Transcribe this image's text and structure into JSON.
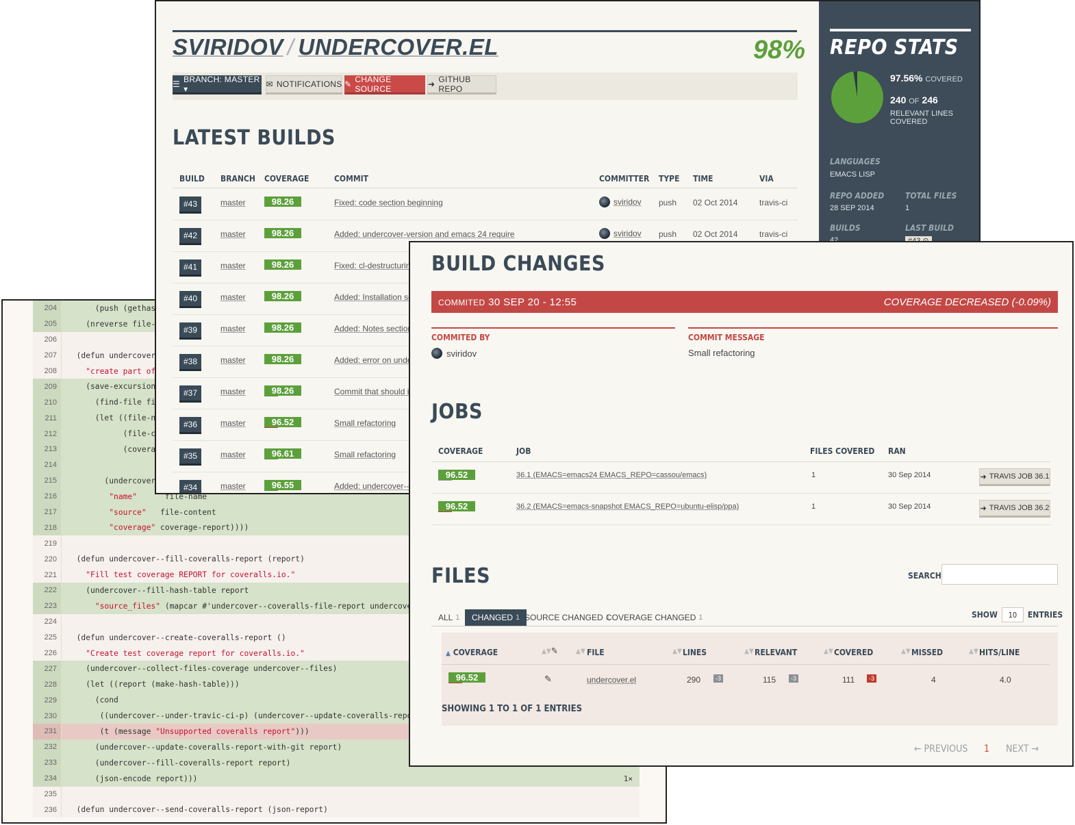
{
  "code": {
    "lines": [
      {
        "n": "204",
        "cls": "covered",
        "t": "      (push (gethash ",
        "s": "",
        "e": ""
      },
      {
        "n": "205",
        "cls": "covered",
        "t": "    (nreverse file-c",
        "s": "",
        "e": ""
      },
      {
        "n": "206",
        "cls": "none",
        "t": "",
        "s": "",
        "e": ""
      },
      {
        "n": "207",
        "cls": "none",
        "t": "  (defun undercover--c",
        "s": "",
        "e": ""
      },
      {
        "n": "208",
        "cls": "none",
        "t": "    ",
        "s": "\"create part of co",
        "e": ""
      },
      {
        "n": "209",
        "cls": "covered",
        "t": "    (save-excursion",
        "s": "",
        "e": ""
      },
      {
        "n": "210",
        "cls": "covered",
        "t": "      (find-file file)",
        "s": "",
        "e": ""
      },
      {
        "n": "211",
        "cls": "covered",
        "t": "      (let ((file-name",
        "s": "",
        "e": ""
      },
      {
        "n": "212",
        "cls": "covered",
        "t": "            (file-cont",
        "s": "",
        "e": ""
      },
      {
        "n": "213",
        "cls": "covered",
        "t": "            (coverage-r",
        "s": "",
        "e": ""
      },
      {
        "n": "214",
        "cls": "covered",
        "t": "",
        "s": "",
        "e": ""
      },
      {
        "n": "215",
        "cls": "covered",
        "t": "        (undercover--m",
        "s": "",
        "e": ""
      },
      {
        "n": "216",
        "cls": "covered",
        "t": "         ",
        "s": "\"name\"",
        "e": "      file-name"
      },
      {
        "n": "217",
        "cls": "covered",
        "t": "         ",
        "s": "\"source\"",
        "e": "   file-content"
      },
      {
        "n": "218",
        "cls": "covered",
        "t": "         ",
        "s": "\"coverage\"",
        "e": " coverage-report))))"
      },
      {
        "n": "219",
        "cls": "none",
        "t": "",
        "s": "",
        "e": ""
      },
      {
        "n": "220",
        "cls": "none",
        "t": "  (defun undercover--fill-coveralls-report (report)",
        "s": "",
        "e": ""
      },
      {
        "n": "221",
        "cls": "none",
        "t": "    ",
        "s": "\"Fill test coverage REPORT for coveralls.io.\"",
        "e": ""
      },
      {
        "n": "222",
        "cls": "covered",
        "t": "    (undercover--fill-hash-table report",
        "s": "",
        "e": ""
      },
      {
        "n": "223",
        "cls": "covered",
        "t": "      ",
        "s": "\"source_files\"",
        "e": " (mapcar #'undercover--coveralls-file-report undercover--files)))"
      },
      {
        "n": "224",
        "cls": "none",
        "t": "",
        "s": "",
        "e": ""
      },
      {
        "n": "225",
        "cls": "none",
        "t": "  (defun undercover--create-coveralls-report ()",
        "s": "",
        "e": ""
      },
      {
        "n": "226",
        "cls": "none",
        "t": "    ",
        "s": "\"Create test coverage report for coveralls.io.\"",
        "e": ""
      },
      {
        "n": "227",
        "cls": "covered",
        "t": "    (undercover--collect-files-coverage undercover--files)",
        "s": "",
        "e": ""
      },
      {
        "n": "228",
        "cls": "covered",
        "t": "    (let ((report (make-hash-table)))",
        "s": "",
        "e": ""
      },
      {
        "n": "229",
        "cls": "covered",
        "t": "      (cond",
        "s": "",
        "e": ""
      },
      {
        "n": "230",
        "cls": "covered",
        "t": "       ((undercover--under-travic-ci-p) (undercover--update-coveralls-report-with-tra",
        "s": "",
        "e": ""
      },
      {
        "n": "231",
        "cls": "missed",
        "t": "       (t (message ",
        "s": "\"Unsupported coveralls report\"",
        "e": ")))"
      },
      {
        "n": "232",
        "cls": "covered",
        "t": "      (undercover--update-coveralls-report-with-git report)",
        "s": "",
        "e": ""
      },
      {
        "n": "233",
        "cls": "covered",
        "t": "      (undercover--fill-coveralls-report report)",
        "s": "",
        "e": ""
      },
      {
        "n": "234",
        "cls": "covered",
        "t": "      (json-encode report)))",
        "s": "",
        "e": "",
        "hits": "1×"
      },
      {
        "n": "235",
        "cls": "none",
        "t": "",
        "s": "",
        "e": ""
      },
      {
        "n": "236",
        "cls": "none",
        "t": "  (defun undercover--send-coveralls-report (json-report)",
        "s": "",
        "e": ""
      }
    ]
  },
  "repo": {
    "owner": "SVIRIDOV",
    "sep": "/",
    "name": "UNDERCOVER.EL",
    "percent": "98%",
    "toolbar": {
      "branch": "BRANCH: MASTER ▾",
      "notifications": "NOTIFICATIONS",
      "change_source": "CHANGE SOURCE",
      "github": "GITHUB REPO"
    },
    "latest_title": "LATEST BUILDS",
    "columns": [
      "BUILD",
      "BRANCH",
      "COVERAGE",
      "COMMIT",
      "COMMITTER",
      "TYPE",
      "TIME",
      "VIA"
    ],
    "builds": [
      {
        "id": "#43",
        "branch": "master",
        "trend": "same",
        "cov": "98.26",
        "commit": "Fixed: code section beginning",
        "committer": "sviridov",
        "type": "push",
        "time": "02 Oct 2014",
        "via": "travis-ci"
      },
      {
        "id": "#42",
        "branch": "master",
        "trend": "same",
        "cov": "98.26",
        "commit": "Added: undercover-version and emacs 24 require",
        "committer": "sviridov",
        "type": "push",
        "time": "02 Oct 2014",
        "via": "travis-ci"
      },
      {
        "id": "#41",
        "branch": "master",
        "trend": "same",
        "cov": "98.26",
        "commit": "Fixed: cl-destructuring",
        "committer": "",
        "type": "",
        "time": "",
        "via": ""
      },
      {
        "id": "#40",
        "branch": "master",
        "trend": "same",
        "cov": "98.26",
        "commit": "Added: Installation sec",
        "committer": "",
        "type": "",
        "time": "",
        "via": ""
      },
      {
        "id": "#39",
        "branch": "master",
        "trend": "same",
        "cov": "98.26",
        "commit": "Added: Notes section",
        "committer": "",
        "type": "",
        "time": "",
        "via": ""
      },
      {
        "id": "#38",
        "branch": "master",
        "trend": "same",
        "cov": "98.26",
        "commit": "Added: error on undefi",
        "committer": "",
        "type": "",
        "time": "",
        "via": ""
      },
      {
        "id": "#37",
        "branch": "master",
        "trend": "up",
        "cov": "98.26",
        "commit": "Commit that should in",
        "committer": "",
        "type": "",
        "time": "",
        "via": ""
      },
      {
        "id": "#36",
        "branch": "master",
        "trend": "down",
        "cov": "96.52",
        "commit": "Small refactoring",
        "committer": "",
        "type": "",
        "time": "",
        "via": ""
      },
      {
        "id": "#35",
        "branch": "master",
        "trend": "up",
        "cov": "96.61",
        "commit": "Small refactoring",
        "committer": "",
        "type": "",
        "time": "",
        "via": ""
      },
      {
        "id": "#34",
        "branch": "master",
        "trend": "up",
        "cov": "96.55",
        "commit": "Added: undercover--fil",
        "committer": "",
        "type": "",
        "time": "",
        "via": ""
      }
    ],
    "stats": {
      "title": "REPO STATS",
      "covered_pct": "97.56%",
      "covered_word": "COVERED",
      "covered_fraction": 0.9756,
      "lines_covered": "240",
      "of_word": "OF",
      "lines_total": "246",
      "relevant_label": "RELEVANT LINES COVERED",
      "languages_label": "LANGUAGES",
      "languages": "EMACS LISP",
      "repo_added_label": "REPO ADDED",
      "repo_added": "28 SEP 2014",
      "total_files_label": "TOTAL FILES",
      "total_files": "1",
      "builds_label": "BUILDS",
      "builds": "42",
      "last_build_label": "LAST BUILD",
      "last_build": "#43 ⊙"
    },
    "colors": {
      "navy": "#3a4a57",
      "green": "#5ca03c",
      "red": "#c34845"
    }
  },
  "build": {
    "title": "BUILD CHANGES",
    "committed_word": "COMMITED",
    "committed_at": "30 SEP 20 - 12:55",
    "coverage_change": "COVERAGE DECREASED (-0.09%)",
    "committed_by_label": "COMMITED BY",
    "committer": "sviridov",
    "commit_message_label": "COMMIT MESSAGE",
    "commit_message": "Small refactoring",
    "jobs_title": "JOBS",
    "jobs_columns": [
      "COVERAGE",
      "JOB",
      "FILES COVERED",
      "RAN"
    ],
    "jobs": [
      {
        "trend": "plus",
        "cov": "96.52",
        "job": "36.1 (EMACS=emacs24 EMACS_REPO=cassou/emacs)",
        "files": "1",
        "ran": "30 Sep 2014",
        "btn": "TRAVIS JOB 36.1"
      },
      {
        "trend": "down",
        "cov": "96.52",
        "job": "36.2 (EMACS=emacs-snapshot EMACS_REPO=ubuntu-elisp/ppa)",
        "files": "1",
        "ran": "30 Sep 2014",
        "btn": "TRAVIS JOB 36.2"
      }
    ],
    "files_title": "FILES",
    "search_label": "SEARCH:",
    "tabs": [
      {
        "label": "ALL",
        "count": "1"
      },
      {
        "label": "CHANGED",
        "count": "1"
      },
      {
        "label": "SOURCE CHANGED",
        "count": "1"
      },
      {
        "label": "COVERAGE CHANGED",
        "count": "1"
      }
    ],
    "show_label": "SHOW",
    "show_value": "10",
    "entries_label": "ENTRIES",
    "files_columns": {
      "coverage": "COVERAGE",
      "file": "FILE",
      "lines": "LINES",
      "relevant": "RELEVANT",
      "covered": "COVERED",
      "missed": "MISSED",
      "hits": "HITS/LINE"
    },
    "file_row": {
      "cov": "96.52",
      "file": "undercover.el",
      "lines": "290",
      "lines_d": "-3",
      "relevant": "115",
      "relevant_d": "-3",
      "covered": "111",
      "covered_d": "-3",
      "missed": "4",
      "hits": "4.0"
    },
    "showing": "SHOWING 1 TO 1 OF 1 ENTRIES",
    "previous": "← PREVIOUS",
    "page": "1",
    "next": "NEXT →"
  }
}
